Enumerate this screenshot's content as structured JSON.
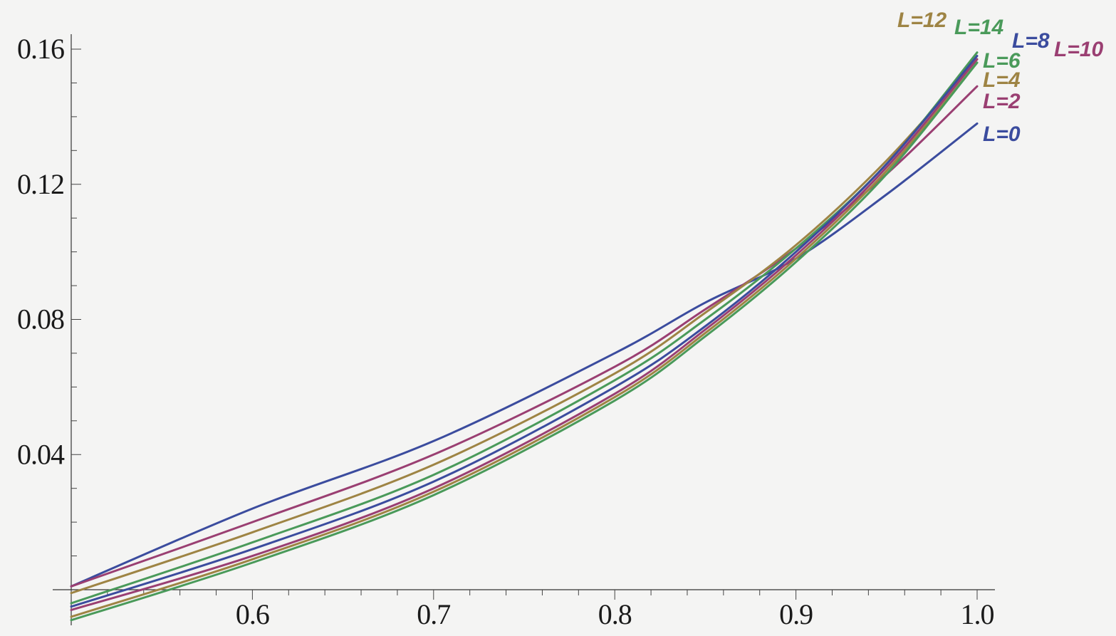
{
  "chart_data": {
    "type": "line",
    "title": "",
    "xlabel": "",
    "ylabel": "",
    "xlim": [
      0.5,
      1.0
    ],
    "ylim": [
      0.0,
      0.165
    ],
    "x_ticks": [
      {
        "value": 0.6,
        "label": "0.6"
      },
      {
        "value": 0.7,
        "label": "0.7"
      },
      {
        "value": 0.8,
        "label": "0.8"
      },
      {
        "value": 0.9,
        "label": "0.9"
      },
      {
        "value": 1.0,
        "label": "1.0"
      }
    ],
    "y_ticks": [
      {
        "value": 0.04,
        "label": "0.04"
      },
      {
        "value": 0.08,
        "label": "0.08"
      },
      {
        "value": 0.12,
        "label": "0.12"
      },
      {
        "value": 0.16,
        "label": "0.16"
      }
    ],
    "x": [
      0.5,
      0.6,
      0.7,
      0.8,
      0.85,
      0.9,
      0.95,
      1.0
    ],
    "series": [
      {
        "name": "L=0",
        "color": "#3b4c9e",
        "values": [
          0.001,
          0.024,
          0.044,
          0.07,
          0.085,
          0.098,
          0.117,
          0.138
        ]
      },
      {
        "name": "L=2",
        "color": "#9a3f72",
        "values": [
          0.001,
          0.02,
          0.04,
          0.066,
          0.083,
          0.101,
          0.123,
          0.149
        ]
      },
      {
        "name": "L=4",
        "color": "#9e8444",
        "values": [
          -0.001,
          0.017,
          0.037,
          0.064,
          0.082,
          0.102,
          0.127,
          0.157
        ]
      },
      {
        "name": "L=6",
        "color": "#4a9a5a",
        "values": [
          -0.004,
          0.014,
          0.034,
          0.062,
          0.08,
          0.101,
          0.126,
          0.159
        ]
      },
      {
        "name": "L=8",
        "color": "#3b4c9e",
        "values": [
          -0.005,
          0.012,
          0.032,
          0.06,
          0.078,
          0.1,
          0.126,
          0.158
        ]
      },
      {
        "name": "L=10",
        "color": "#9a3f72",
        "values": [
          -0.006,
          0.01,
          0.03,
          0.058,
          0.077,
          0.099,
          0.125,
          0.157
        ]
      },
      {
        "name": "L=12",
        "color": "#9e8444",
        "values": [
          -0.008,
          0.009,
          0.029,
          0.057,
          0.076,
          0.098,
          0.124,
          0.156
        ]
      },
      {
        "name": "L=14",
        "color": "#4a9a5a",
        "values": [
          -0.009,
          0.008,
          0.028,
          0.056,
          0.075,
          0.097,
          0.123,
          0.156
        ]
      }
    ],
    "grid": false,
    "legend": "inline labels at right ends of curves"
  }
}
